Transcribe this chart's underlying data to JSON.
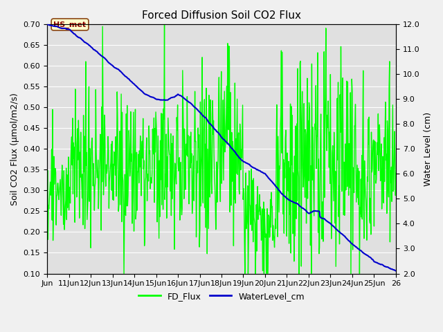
{
  "title": "Forced Diffusion Soil CO2 Flux",
  "ylabel_left": "Soil CO2 Flux (μmol/m2/s)",
  "ylabel_right": "Water Level (cm)",
  "ylim_left": [
    0.1,
    0.7
  ],
  "ylim_right": [
    2.0,
    12.0
  ],
  "yticks_left": [
    0.1,
    0.15,
    0.2,
    0.25,
    0.3,
    0.35,
    0.4,
    0.45,
    0.5,
    0.55,
    0.6,
    0.65,
    0.7
  ],
  "yticks_right": [
    2.0,
    3.0,
    4.0,
    5.0,
    6.0,
    7.0,
    8.0,
    9.0,
    10.0,
    11.0,
    12.0
  ],
  "fig_bg_color": "#f0f0f0",
  "plot_bg_color": "#e0e0e0",
  "fd_flux_color": "#00ff00",
  "water_level_color": "#0000cc",
  "annotation_text": "HS_met",
  "annotation_bg": "#ffffcc",
  "annotation_border": "#8b4513",
  "annotation_text_color": "#8b0000",
  "legend_fd": "FD_Flux",
  "legend_wl": "WaterLevel_cm",
  "fd_linewidth": 1.0,
  "wl_linewidth": 1.5,
  "title_fontsize": 11,
  "axis_label_fontsize": 9,
  "tick_fontsize": 8,
  "legend_fontsize": 9,
  "xtick_labels": [
    "Jun",
    "11Jun",
    "12Jun",
    "13Jun",
    "14Jun",
    "15Jun",
    "16Jun",
    "17Jun",
    "18Jun",
    "19Jun",
    "20Jun",
    "21Jun",
    "22Jun",
    "23Jun",
    "24Jun",
    "25Jun",
    "26"
  ]
}
